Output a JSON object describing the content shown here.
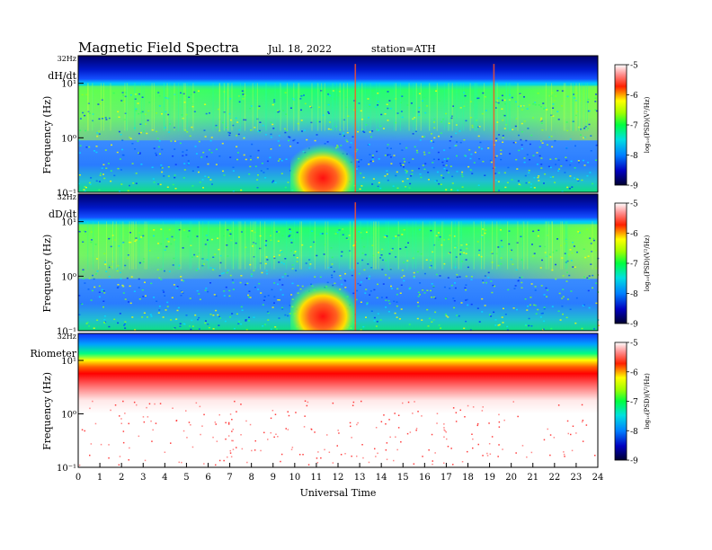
{
  "header": {
    "title": "Magnetic  Field  Spectra",
    "date": "Jul.  18, 2022",
    "station": "station=ATH"
  },
  "chart_data": [
    {
      "type": "heatmap",
      "panel_label": "dH/dt",
      "ylabel": "Frequency  (Hz)",
      "ytick_labels": [
        "32Hz",
        "10¹",
        "10⁰",
        "10⁻¹"
      ],
      "y_scale": "log",
      "ylim": [
        0.1,
        32
      ],
      "x_range": [
        0,
        24
      ],
      "colorbar": {
        "label": "log₁₀(PSD)(V²/Hz)",
        "ticks": [
          -5,
          -6,
          -7,
          -8,
          -9
        ],
        "range": [
          -9,
          -5
        ],
        "palette": [
          "#000040",
          "#0000ff",
          "#00c8ff",
          "#00ff60",
          "#ffff00",
          "#ff0000",
          "#ffffff"
        ]
      },
      "features": [
        {
          "desc": "strong low-frequency enhancement",
          "t_start": 9.8,
          "t_end": 12.8,
          "log_psd": -6.5
        },
        {
          "desc": "vertical broadband spike",
          "t": 12.8,
          "log_psd": -6.0
        },
        {
          "desc": "vertical broadband spike",
          "t": 19.2,
          "log_psd": -6.5
        }
      ]
    },
    {
      "type": "heatmap",
      "panel_label": "dD/dt",
      "ylabel": "Frequency  (Hz)",
      "ytick_labels": [
        "32Hz",
        "10¹",
        "10⁰",
        "10⁻¹"
      ],
      "y_scale": "log",
      "ylim": [
        0.1,
        32
      ],
      "x_range": [
        0,
        24
      ],
      "colorbar": {
        "label": "log₁₀(PSD)(V²/Hz)",
        "ticks": [
          -5,
          -6,
          -7,
          -8,
          -9
        ],
        "range": [
          -9,
          -5
        ]
      },
      "features": [
        {
          "desc": "strong low-frequency enhancement",
          "t_start": 9.8,
          "t_end": 12.8,
          "log_psd": -6.5
        },
        {
          "desc": "vertical broadband spike",
          "t": 12.8,
          "log_psd": -6.0
        }
      ]
    },
    {
      "type": "heatmap",
      "panel_label": "Riometer",
      "ylabel": "Frequency  (Hz)",
      "ytick_labels": [
        "32Hz",
        "10¹",
        "10⁰",
        "10⁻¹"
      ],
      "y_scale": "log",
      "ylim": [
        0.1,
        32
      ],
      "x_range": [
        0,
        24
      ],
      "xlabel": "Universal  Time",
      "xtick_labels": [
        "0",
        "1",
        "2",
        "3",
        "4",
        "5",
        "6",
        "7",
        "8",
        "9",
        "10",
        "11",
        "12",
        "13",
        "14",
        "15",
        "16",
        "17",
        "18",
        "19",
        "20",
        "21",
        "22",
        "23",
        "24"
      ],
      "colorbar": {
        "label": "log₁₀(PSD)(V²/Hz)",
        "ticks": [
          -5,
          -6,
          -7,
          -8,
          -9
        ],
        "range": [
          -9,
          -5
        ]
      }
    }
  ]
}
